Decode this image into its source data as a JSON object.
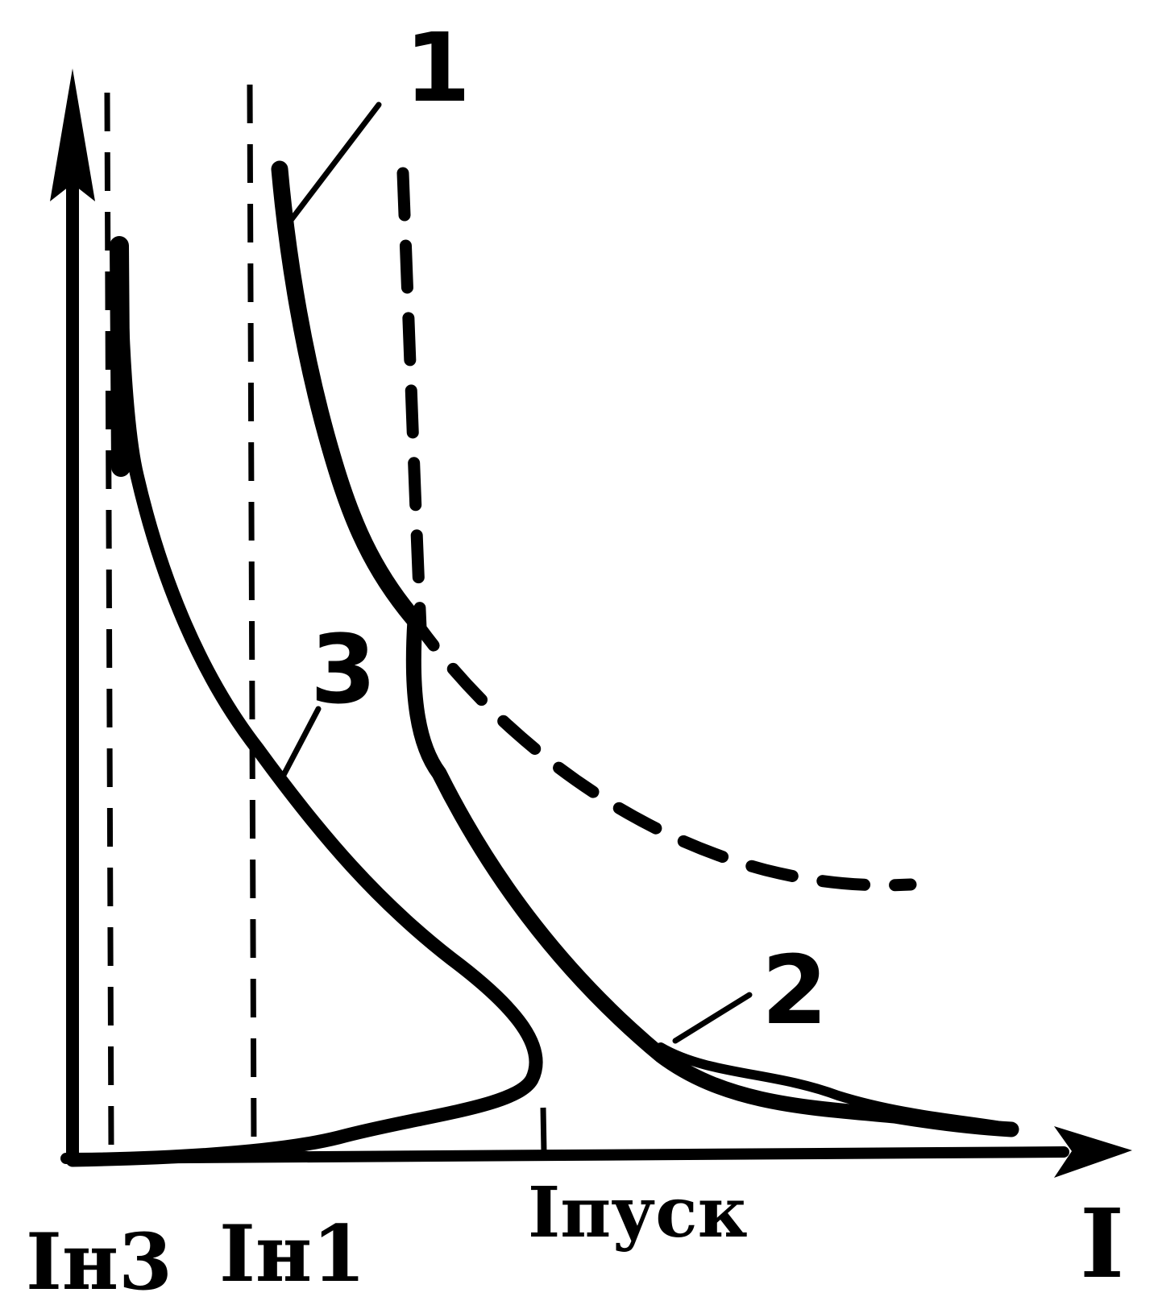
{
  "axes": {
    "x_label": "I"
  },
  "tick_labels": {
    "i_n3": "Iн3",
    "i_n1": "Iн1",
    "i_pusk": "Iпуск"
  },
  "curve_labels": {
    "curve_1": "1",
    "curve_2": "2",
    "curve_3": "3"
  },
  "colors": {
    "ink": "#000000",
    "background": "#ffffff"
  }
}
